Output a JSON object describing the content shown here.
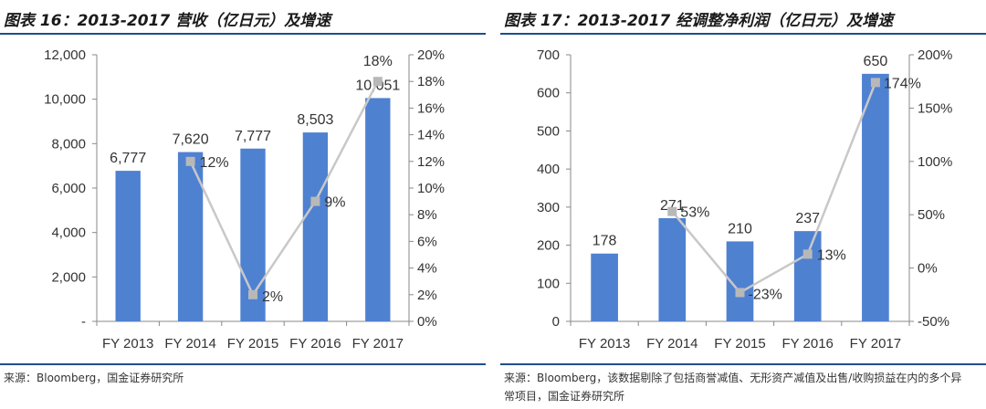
{
  "chart_data": [
    {
      "type": "bar",
      "title": "图表 16：2013-2017 营收（亿日元）及增速",
      "categories": [
        "FY 2013",
        "FY 2014",
        "FY 2015",
        "FY 2016",
        "FY 2017"
      ],
      "series": [
        {
          "values": [
            6777,
            7620,
            7777,
            8503,
            10051
          ],
          "axis": "left",
          "mark": "bar",
          "color": "#4f81d1"
        },
        {
          "values": [
            null,
            12,
            2,
            9,
            18
          ],
          "axis": "right",
          "mark": "line",
          "unit": "%",
          "color": "#c8c8c8"
        }
      ],
      "bar_labels": [
        "6,777",
        "7,620",
        "7,777",
        "8,503",
        "10,051"
      ],
      "line_labels": [
        "",
        "12%",
        "2%",
        "9%",
        "18%"
      ],
      "ylim": [
        0,
        12000
      ],
      "ylim_right": [
        0,
        20
      ],
      "yticks": [
        "-",
        "2,000",
        "4,000",
        "6,000",
        "8,000",
        "10,000",
        "12,000"
      ],
      "yticks_right": [
        "0%",
        "2%",
        "4%",
        "6%",
        "8%",
        "10%",
        "12%",
        "14%",
        "16%",
        "18%",
        "20%"
      ],
      "grid": false,
      "source": "来源：Bloomberg，国金证券研究所"
    },
    {
      "type": "bar",
      "title": "图表 17：2013-2017 经调整净利润（亿日元）及增速",
      "categories": [
        "FY 2013",
        "FY 2014",
        "FY 2015",
        "FY 2016",
        "FY 2017"
      ],
      "series": [
        {
          "values": [
            178,
            271,
            210,
            237,
            650
          ],
          "axis": "left",
          "mark": "bar",
          "color": "#4f81d1"
        },
        {
          "values": [
            null,
            53,
            -23,
            13,
            174
          ],
          "axis": "right",
          "mark": "line",
          "unit": "%",
          "color": "#c8c8c8"
        }
      ],
      "bar_labels": [
        "178",
        "271",
        "210",
        "237",
        "650"
      ],
      "line_labels": [
        "",
        "53%",
        "-23%",
        "13%",
        "174%"
      ],
      "ylim": [
        0,
        700
      ],
      "ylim_right": [
        -50,
        200
      ],
      "yticks": [
        "0",
        "100",
        "200",
        "300",
        "400",
        "500",
        "600",
        "700"
      ],
      "yticks_right": [
        "-50%",
        "0%",
        "50%",
        "100%",
        "150%",
        "200%"
      ],
      "grid": false,
      "source": "来源：Bloomberg，该数据剔除了包括商誉减值、无形资产减值及出售/收购损益在内的多个异常项目，国金证券研究所"
    }
  ]
}
